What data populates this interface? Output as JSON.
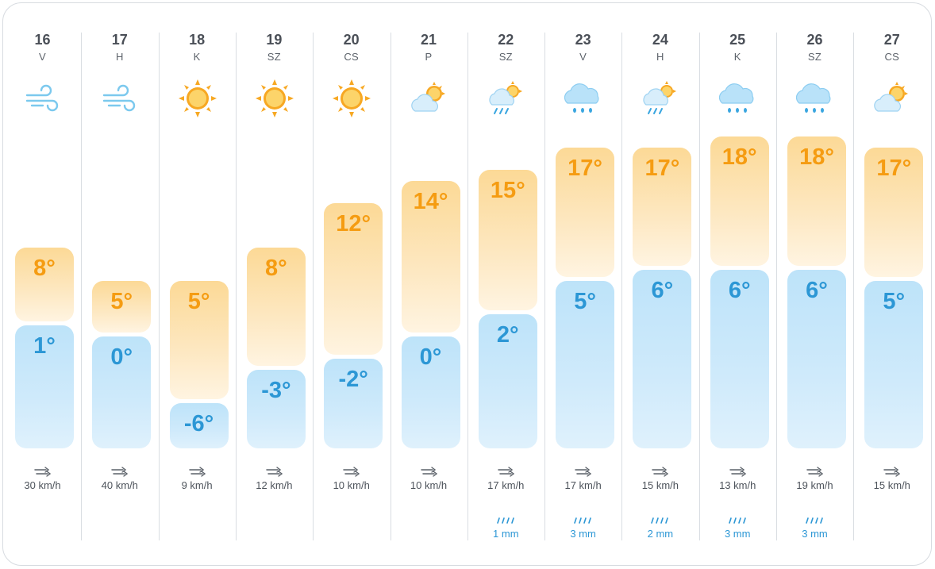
{
  "days": [
    {
      "day": "16",
      "dow": "V",
      "icon": "wind-icon",
      "max": "8°",
      "min": "1°",
      "maxV": 8,
      "minV": 1,
      "wind": "30 km/h",
      "rain": ""
    },
    {
      "day": "17",
      "dow": "H",
      "icon": "wind-icon",
      "max": "5°",
      "min": "0°",
      "maxV": 5,
      "minV": 0,
      "wind": "40 km/h",
      "rain": ""
    },
    {
      "day": "18",
      "dow": "K",
      "icon": "sun-icon",
      "max": "5°",
      "min": "-6°",
      "maxV": 5,
      "minV": -6,
      "wind": "9 km/h",
      "rain": ""
    },
    {
      "day": "19",
      "dow": "SZ",
      "icon": "sun-icon",
      "max": "8°",
      "min": "-3°",
      "maxV": 8,
      "minV": -3,
      "wind": "12 km/h",
      "rain": ""
    },
    {
      "day": "20",
      "dow": "CS",
      "icon": "sun-icon",
      "max": "12°",
      "min": "-2°",
      "maxV": 12,
      "minV": -2,
      "wind": "10 km/h",
      "rain": ""
    },
    {
      "day": "21",
      "dow": "P",
      "icon": "partly-cloudy-icon",
      "max": "14°",
      "min": "0°",
      "maxV": 14,
      "minV": 0,
      "wind": "10 km/h",
      "rain": ""
    },
    {
      "day": "22",
      "dow": "SZ",
      "icon": "sun-rain-icon",
      "max": "15°",
      "min": "2°",
      "maxV": 15,
      "minV": 2,
      "wind": "17 km/h",
      "rain": "1 mm"
    },
    {
      "day": "23",
      "dow": "V",
      "icon": "rain-cloud-icon",
      "max": "17°",
      "min": "5°",
      "maxV": 17,
      "minV": 5,
      "wind": "17 km/h",
      "rain": "3 mm"
    },
    {
      "day": "24",
      "dow": "H",
      "icon": "sun-rain-icon",
      "max": "17°",
      "min": "6°",
      "maxV": 17,
      "minV": 6,
      "wind": "15 km/h",
      "rain": "2 mm"
    },
    {
      "day": "25",
      "dow": "K",
      "icon": "rain-cloud-icon",
      "max": "18°",
      "min": "6°",
      "maxV": 18,
      "minV": 6,
      "wind": "13 km/h",
      "rain": "3 mm"
    },
    {
      "day": "26",
      "dow": "SZ",
      "icon": "rain-cloud-icon",
      "max": "18°",
      "min": "6°",
      "maxV": 18,
      "minV": 6,
      "wind": "19 km/h",
      "rain": "3 mm"
    },
    {
      "day": "27",
      "dow": "CS",
      "icon": "partly-cloudy-icon",
      "max": "17°",
      "min": "5°",
      "maxV": 17,
      "minV": 5,
      "wind": "15 km/h",
      "rain": ""
    }
  ],
  "colors": {
    "max": "#f59c12",
    "min": "#2c97d5",
    "wind_icon": "#7cc9ee",
    "sun": "#f7a823",
    "cloud": "#c9e8fa",
    "rain": "#3aa6e0"
  }
}
